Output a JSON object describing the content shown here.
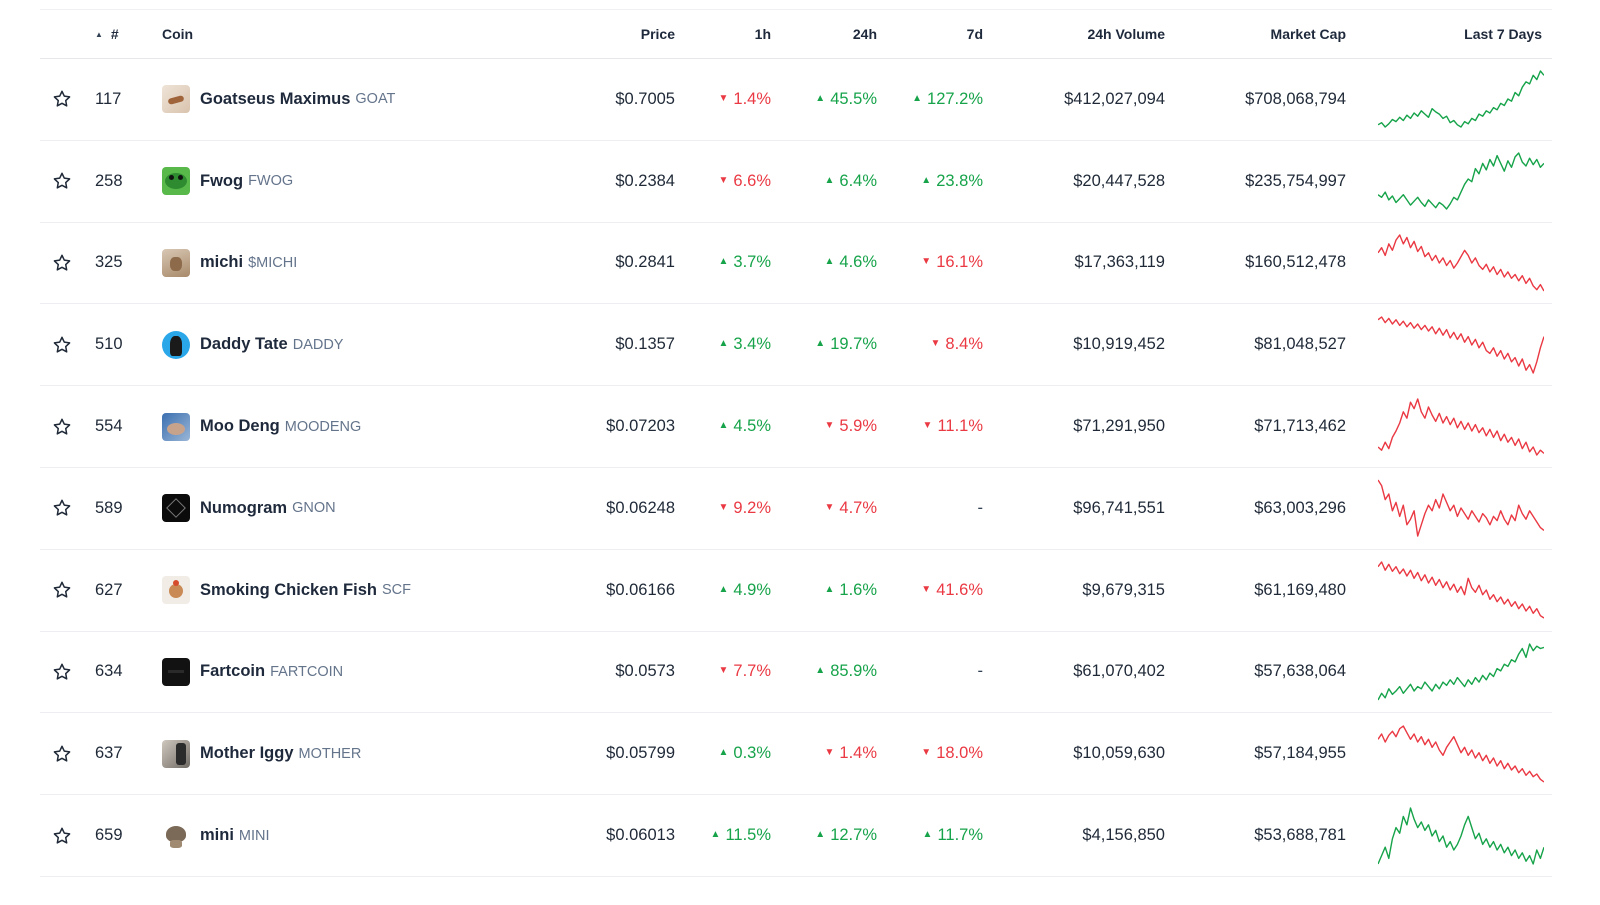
{
  "header": {
    "rank": "#",
    "coin": "Coin",
    "price": "Price",
    "h1": "1h",
    "h24": "24h",
    "d7": "7d",
    "volume": "24h Volume",
    "market_cap": "Market Cap",
    "last7": "Last 7 Days"
  },
  "colors": {
    "up": "#16a34a",
    "down": "#ea3943"
  },
  "coins": [
    {
      "rank": "117",
      "name": "Goatseus Maximus",
      "symbol": "GOAT",
      "price": "$0.7005",
      "h1": "1.4%",
      "h1_dir": "down",
      "h24": "45.5%",
      "h24_dir": "up",
      "d7": "127.2%",
      "d7_dir": "up",
      "volume": "$412,027,094",
      "market_cap": "$708,068,794",
      "trend": "up",
      "logo": "goat-logo",
      "spark": [
        20,
        22,
        18,
        21,
        25,
        23,
        27,
        24,
        29,
        26,
        31,
        28,
        33,
        30,
        27,
        35,
        32,
        30,
        26,
        28,
        22,
        24,
        20,
        18,
        23,
        21,
        26,
        24,
        30,
        28,
        33,
        31,
        36,
        34,
        40,
        38,
        44,
        42,
        50,
        47,
        55,
        60,
        58,
        66,
        62,
        70,
        66
      ]
    },
    {
      "rank": "258",
      "name": "Fwog",
      "symbol": "FWOG",
      "price": "$0.2384",
      "h1": "6.6%",
      "h1_dir": "down",
      "h24": "6.4%",
      "h24_dir": "up",
      "d7": "23.8%",
      "d7_dir": "up",
      "volume": "$20,447,528",
      "market_cap": "$235,754,997",
      "trend": "up",
      "logo": "fwog-logo",
      "spark": [
        28,
        26,
        30,
        24,
        27,
        22,
        25,
        28,
        24,
        20,
        23,
        26,
        22,
        19,
        24,
        21,
        18,
        22,
        20,
        17,
        21,
        26,
        24,
        30,
        36,
        40,
        38,
        48,
        44,
        52,
        47,
        55,
        50,
        58,
        52,
        46,
        54,
        49,
        57,
        60,
        53,
        50,
        56,
        51,
        55,
        49,
        52
      ]
    },
    {
      "rank": "325",
      "name": "michi",
      "symbol": "$MICHI",
      "price": "$0.2841",
      "h1": "3.7%",
      "h1_dir": "up",
      "h24": "4.6%",
      "h24_dir": "up",
      "d7": "16.1%",
      "d7_dir": "down",
      "volume": "$17,363,119",
      "market_cap": "$160,512,478",
      "trend": "down",
      "logo": "michi-logo",
      "spark": [
        48,
        52,
        46,
        55,
        50,
        58,
        62,
        55,
        60,
        52,
        57,
        49,
        53,
        45,
        48,
        42,
        46,
        40,
        44,
        38,
        42,
        36,
        40,
        45,
        50,
        46,
        40,
        44,
        38,
        35,
        39,
        33,
        37,
        31,
        35,
        29,
        33,
        28,
        31,
        26,
        30,
        24,
        28,
        22,
        19,
        23,
        18
      ]
    },
    {
      "rank": "510",
      "name": "Daddy Tate",
      "symbol": "DADDY",
      "price": "$0.1357",
      "h1": "3.4%",
      "h1_dir": "up",
      "h24": "19.7%",
      "h24_dir": "up",
      "d7": "8.4%",
      "d7_dir": "down",
      "volume": "$10,919,452",
      "market_cap": "$81,048,527",
      "trend": "down",
      "logo": "daddy-logo",
      "spark": [
        58,
        60,
        56,
        59,
        55,
        58,
        54,
        57,
        53,
        56,
        52,
        55,
        51,
        54,
        50,
        53,
        48,
        52,
        47,
        51,
        45,
        49,
        44,
        48,
        42,
        46,
        40,
        44,
        38,
        42,
        36,
        34,
        38,
        32,
        36,
        30,
        34,
        28,
        31,
        25,
        30,
        22,
        26,
        20,
        28,
        38,
        46
      ]
    },
    {
      "rank": "554",
      "name": "Moo Deng",
      "symbol": "MOODENG",
      "price": "$0.07203",
      "h1": "4.5%",
      "h1_dir": "up",
      "h24": "5.9%",
      "h24_dir": "down",
      "d7": "11.1%",
      "d7_dir": "down",
      "volume": "$71,291,950",
      "market_cap": "$71,713,462",
      "trend": "down",
      "logo": "moodeng-logo",
      "spark": [
        30,
        28,
        33,
        29,
        36,
        40,
        45,
        52,
        48,
        58,
        54,
        60,
        52,
        48,
        55,
        50,
        46,
        51,
        45,
        49,
        44,
        48,
        42,
        46,
        41,
        45,
        40,
        44,
        39,
        42,
        37,
        41,
        36,
        40,
        34,
        38,
        33,
        36,
        31,
        35,
        29,
        33,
        27,
        30,
        25,
        28,
        26
      ]
    },
    {
      "rank": "589",
      "name": "Numogram",
      "symbol": "GNON",
      "price": "$0.06248",
      "h1": "9.2%",
      "h1_dir": "down",
      "h24": "4.7%",
      "h24_dir": "down",
      "d7": "-",
      "d7_dir": "none",
      "volume": "$96,741,551",
      "market_cap": "$63,003,296",
      "trend": "down",
      "logo": "numogram-logo",
      "spark": [
        62,
        58,
        48,
        52,
        40,
        46,
        36,
        44,
        30,
        34,
        40,
        22,
        30,
        38,
        44,
        40,
        48,
        42,
        52,
        46,
        40,
        44,
        36,
        42,
        38,
        34,
        40,
        36,
        32,
        38,
        35,
        30,
        36,
        33,
        40,
        34,
        30,
        37,
        33,
        44,
        38,
        34,
        40,
        36,
        32,
        28,
        26
      ]
    },
    {
      "rank": "627",
      "name": "Smoking Chicken Fish",
      "symbol": "SCF",
      "price": "$0.06166",
      "h1": "4.9%",
      "h1_dir": "up",
      "h24": "1.6%",
      "h24_dir": "up",
      "d7": "41.6%",
      "d7_dir": "down",
      "volume": "$9,679,315",
      "market_cap": "$61,169,480",
      "trend": "down",
      "logo": "scf-logo",
      "spark": [
        58,
        62,
        55,
        60,
        54,
        58,
        52,
        56,
        50,
        55,
        48,
        53,
        46,
        51,
        44,
        49,
        42,
        47,
        40,
        45,
        38,
        43,
        36,
        41,
        34,
        48,
        40,
        36,
        42,
        34,
        38,
        30,
        34,
        28,
        32,
        26,
        30,
        24,
        28,
        22,
        26,
        20,
        24,
        18,
        22,
        16,
        14
      ]
    },
    {
      "rank": "634",
      "name": "Fartcoin",
      "symbol": "FARTCOIN",
      "price": "$0.0573",
      "h1": "7.7%",
      "h1_dir": "down",
      "h24": "85.9%",
      "h24_dir": "up",
      "d7": "-",
      "d7_dir": "none",
      "volume": "$61,070,402",
      "market_cap": "$57,638,064",
      "trend": "up",
      "logo": "fartcoin-logo",
      "spark": [
        14,
        20,
        16,
        24,
        19,
        22,
        26,
        20,
        24,
        28,
        22,
        26,
        24,
        30,
        26,
        22,
        28,
        24,
        30,
        27,
        32,
        28,
        34,
        30,
        26,
        32,
        28,
        34,
        30,
        36,
        32,
        38,
        35,
        42,
        40,
        46,
        44,
        50,
        48,
        55,
        60,
        52,
        64,
        58,
        62,
        60,
        61
      ]
    },
    {
      "rank": "637",
      "name": "Mother Iggy",
      "symbol": "MOTHER",
      "price": "$0.05799",
      "h1": "0.3%",
      "h1_dir": "up",
      "h24": "1.4%",
      "h24_dir": "down",
      "d7": "18.0%",
      "d7_dir": "down",
      "volume": "$10,059,630",
      "market_cap": "$57,184,955",
      "trend": "down",
      "logo": "mother-logo",
      "spark": [
        50,
        54,
        48,
        53,
        56,
        52,
        58,
        60,
        55,
        50,
        54,
        48,
        52,
        46,
        50,
        44,
        48,
        42,
        38,
        44,
        48,
        52,
        46,
        40,
        44,
        38,
        42,
        36,
        40,
        34,
        38,
        32,
        36,
        30,
        34,
        28,
        32,
        27,
        30,
        25,
        28,
        23,
        26,
        22,
        24,
        20,
        18
      ]
    },
    {
      "rank": "659",
      "name": "mini",
      "symbol": "MINI",
      "price": "$0.06013",
      "h1": "11.5%",
      "h1_dir": "up",
      "h24": "12.7%",
      "h24_dir": "up",
      "d7": "11.7%",
      "d7_dir": "up",
      "volume": "$4,156,850",
      "market_cap": "$53,688,781",
      "trend": "up",
      "logo": "mini-logo",
      "spark": [
        18,
        24,
        30,
        22,
        36,
        44,
        40,
        52,
        46,
        58,
        50,
        44,
        48,
        42,
        46,
        38,
        42,
        34,
        38,
        30,
        34,
        28,
        32,
        38,
        46,
        52,
        44,
        36,
        40,
        32,
        36,
        30,
        34,
        28,
        32,
        26,
        30,
        24,
        28,
        22,
        26,
        20,
        24,
        18,
        28,
        22,
        30
      ]
    }
  ]
}
